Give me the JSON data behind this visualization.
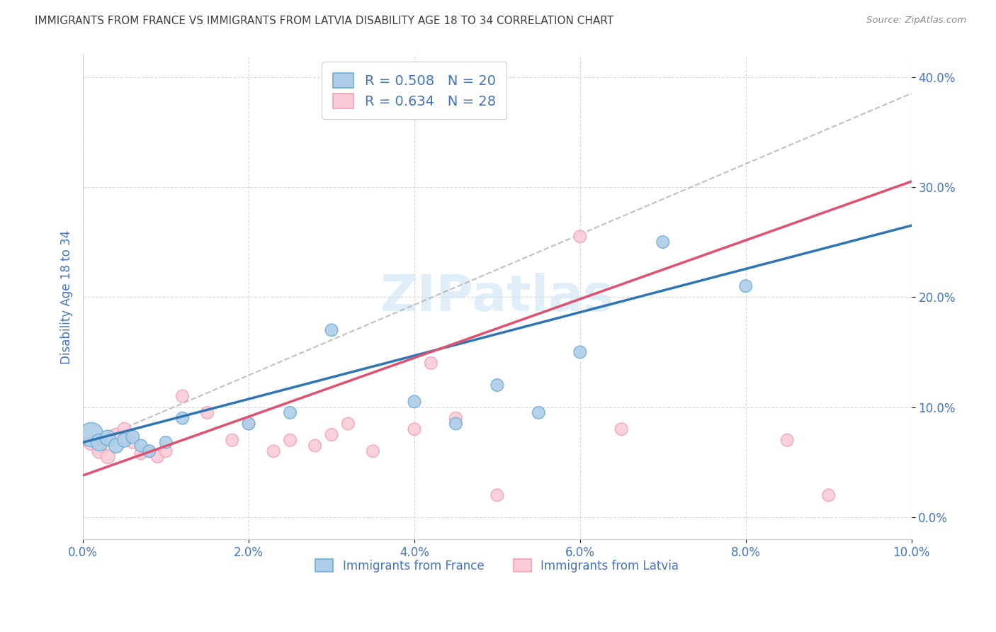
{
  "title": "IMMIGRANTS FROM FRANCE VS IMMIGRANTS FROM LATVIA DISABILITY AGE 18 TO 34 CORRELATION CHART",
  "source": "Source: ZipAtlas.com",
  "ylabel": "Disability Age 18 to 34",
  "xlim": [
    0.0,
    0.1
  ],
  "ylim": [
    -0.02,
    0.42
  ],
  "xticks": [
    0.0,
    0.02,
    0.04,
    0.06,
    0.08,
    0.1
  ],
  "yticks": [
    0.0,
    0.1,
    0.2,
    0.3,
    0.4
  ],
  "france_color": "#6baed6",
  "france_color_fill": "#aecde8",
  "latvia_color": "#f4a0b5",
  "latvia_color_fill": "#f9ccd8",
  "france_R": 0.508,
  "france_N": 20,
  "latvia_R": 0.634,
  "latvia_N": 28,
  "legend_label_france": "Immigrants from France",
  "legend_label_latvia": "Immigrants from Latvia",
  "france_x": [
    0.001,
    0.002,
    0.003,
    0.004,
    0.005,
    0.006,
    0.007,
    0.008,
    0.01,
    0.012,
    0.02,
    0.025,
    0.03,
    0.04,
    0.045,
    0.05,
    0.055,
    0.06,
    0.07,
    0.08
  ],
  "france_y": [
    0.075,
    0.068,
    0.072,
    0.065,
    0.07,
    0.073,
    0.065,
    0.06,
    0.068,
    0.09,
    0.085,
    0.095,
    0.17,
    0.105,
    0.085,
    0.12,
    0.095,
    0.15,
    0.25,
    0.21
  ],
  "france_sizes": [
    600,
    300,
    250,
    220,
    200,
    180,
    160,
    160,
    160,
    160,
    160,
    160,
    160,
    160,
    160,
    160,
    160,
    160,
    160,
    160
  ],
  "latvia_x": [
    0.001,
    0.002,
    0.003,
    0.004,
    0.005,
    0.006,
    0.007,
    0.008,
    0.009,
    0.01,
    0.012,
    0.015,
    0.018,
    0.02,
    0.023,
    0.025,
    0.028,
    0.03,
    0.032,
    0.035,
    0.04,
    0.042,
    0.045,
    0.05,
    0.06,
    0.065,
    0.085,
    0.09
  ],
  "latvia_y": [
    0.068,
    0.06,
    0.055,
    0.075,
    0.08,
    0.068,
    0.058,
    0.06,
    0.055,
    0.06,
    0.11,
    0.095,
    0.07,
    0.085,
    0.06,
    0.07,
    0.065,
    0.075,
    0.085,
    0.06,
    0.08,
    0.14,
    0.09,
    0.02,
    0.255,
    0.08,
    0.07,
    0.02
  ],
  "latvia_sizes": [
    250,
    220,
    200,
    180,
    180,
    160,
    160,
    160,
    160,
    160,
    160,
    160,
    160,
    160,
    160,
    160,
    160,
    160,
    160,
    160,
    160,
    160,
    160,
    160,
    160,
    160,
    160,
    160
  ],
  "watermark": "ZIPatlas",
  "grid_color": "#d8d8d8",
  "axis_label_color": "#4472c4",
  "title_color": "#404040",
  "line_france_color": "#2e75b6",
  "line_latvia_color": "#e05070",
  "diag_color": "#b0b0b0"
}
